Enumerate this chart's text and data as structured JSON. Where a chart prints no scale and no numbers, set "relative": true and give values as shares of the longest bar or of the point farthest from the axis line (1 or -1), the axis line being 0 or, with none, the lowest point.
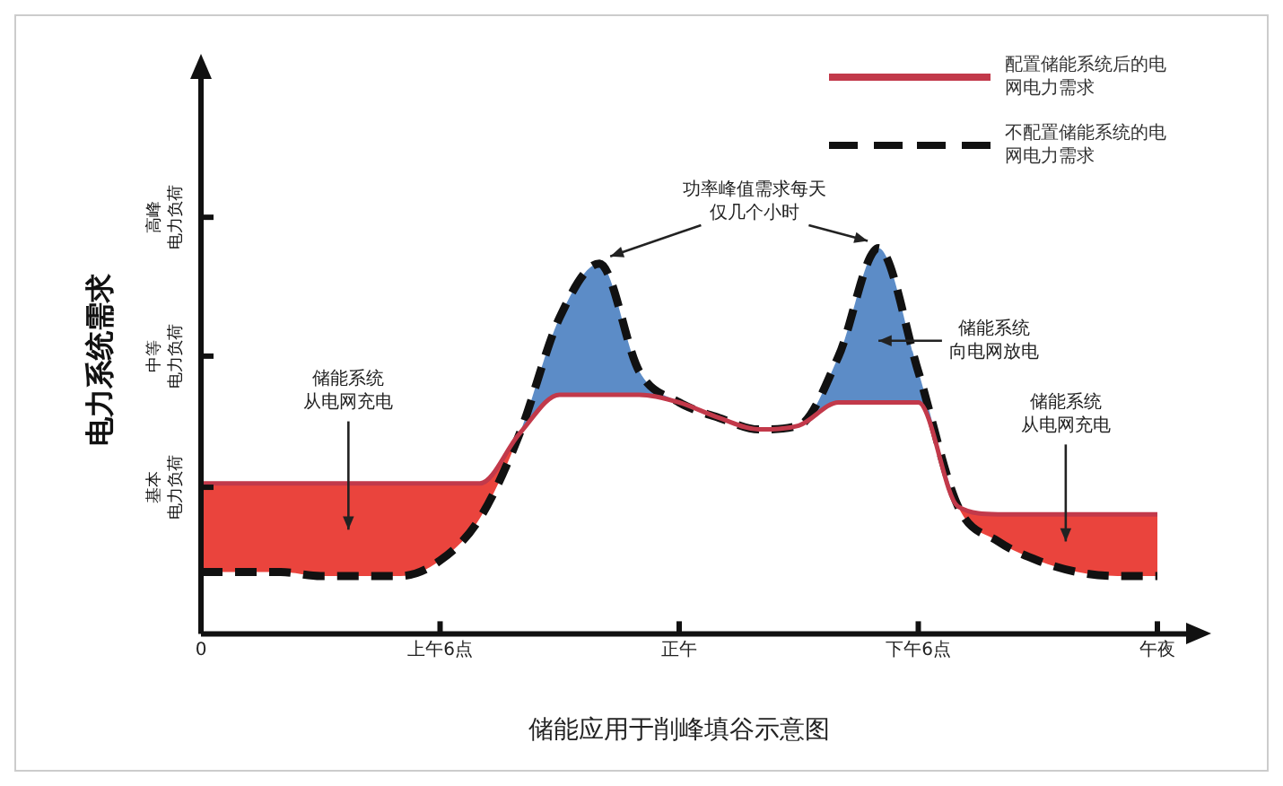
{
  "chart_data": {
    "type": "line",
    "title": "储能应用于削峰填谷示意图",
    "ylabel": "电力系统需求",
    "relative": true,
    "legend": "top right",
    "marker": "none",
    "categories": [
      "0",
      null,
      null,
      null,
      null,
      null,
      "上午6点",
      null,
      null,
      null,
      null,
      null,
      "正午",
      null,
      null,
      null,
      null,
      null,
      "下午6点",
      null,
      null,
      null,
      null,
      null,
      "午夜"
    ],
    "series": [
      {
        "name": "配置储能系统后的电网电力需求",
        "color": "#c2394a",
        "line_style": "solid",
        "values": [
          0.39,
          0.39,
          0.39,
          0.39,
          0.39,
          0.39,
          0.39,
          0.39,
          0.52,
          0.62,
          0.62,
          0.62,
          0.6,
          0.56,
          0.53,
          0.54,
          0.6,
          0.6,
          0.6,
          0.33,
          0.31,
          0.31,
          0.31,
          0.31,
          0.31
        ]
      },
      {
        "name": "不配置储能系统的电网电力需求",
        "color": "#111111",
        "line_style": "dashed",
        "values": [
          0.16,
          0.16,
          0.16,
          0.15,
          0.15,
          0.15,
          0.19,
          0.3,
          0.52,
          0.82,
          0.96,
          0.68,
          0.6,
          0.56,
          0.53,
          0.54,
          0.72,
          1,
          0.68,
          0.33,
          0.24,
          0.19,
          0.16,
          0.15,
          0.15
        ]
      }
    ],
    "annotations": [
      "高峰电力负荷",
      "中等电力负荷",
      "基本电力负荷",
      "储能系统从电网充电",
      "功率峰值需求每天仅几个小时",
      "储能系统向电网放电",
      "储能系统从电网充电"
    ]
  }
}
